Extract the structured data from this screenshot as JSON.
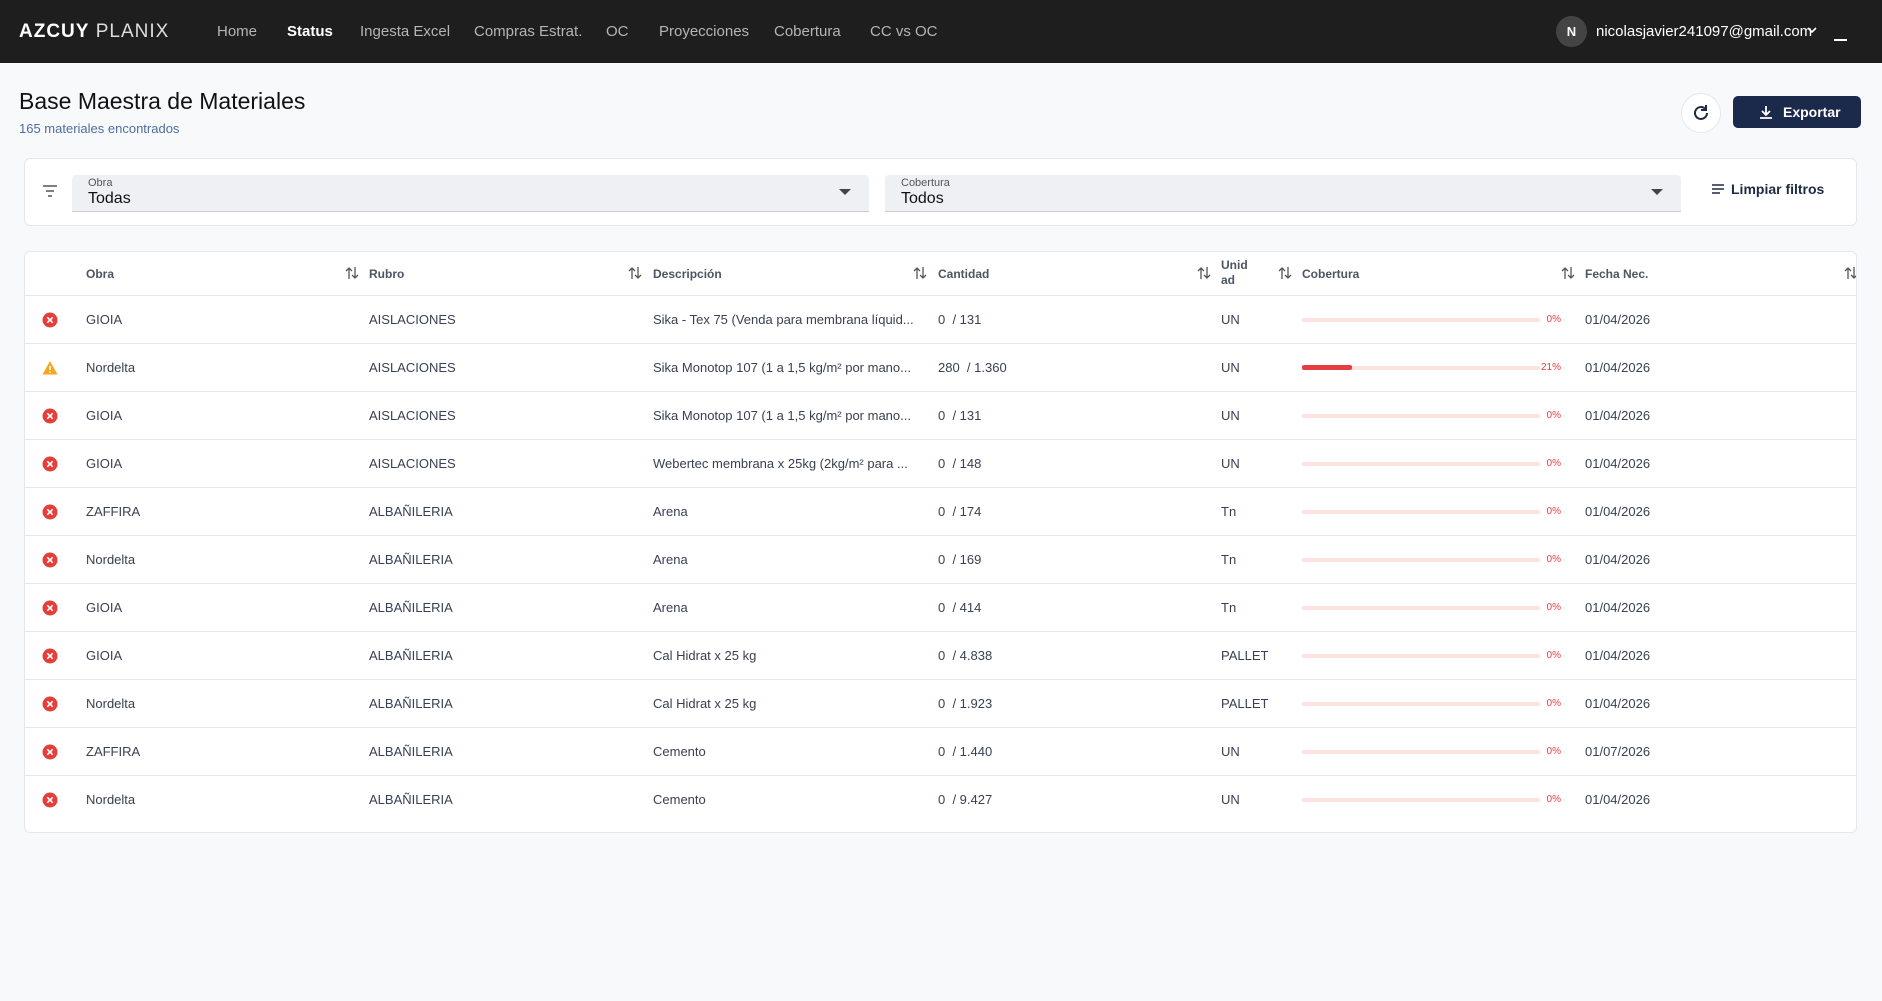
{
  "navbar": {
    "brand_bold": "AZCUY",
    "brand_light": "PLANIX",
    "items": [
      "Home",
      "Status",
      "Ingesta Excel",
      "Compras Estrat.",
      "OC",
      "Proyecciones",
      "Cobertura",
      "CC vs OC"
    ],
    "active": 1,
    "avatar": "N",
    "user": "nicolasjavier241097@gmail.com"
  },
  "header": {
    "title": "Base Maestra de Materiales",
    "subtitle": "165 materiales encontrados",
    "export": "Exportar"
  },
  "filters": {
    "obra_label": "Obra",
    "obra_value": "Todas",
    "cobertura_label": "Cobertura",
    "cobertura_value": "Todos",
    "clear": "Limpiar filtros"
  },
  "table": {
    "columns": [
      "Obra",
      "Rubro",
      "Descripción",
      "Cantidad",
      "Unidad",
      "Cobertura",
      "Fecha Nec."
    ],
    "rows": [
      {
        "status": "error",
        "obra": "GIOIA",
        "rubro": "AISLACIONES",
        "descripcion": "Sika - Tex 75 (Venda para membrana líquid...",
        "cantidad": "0  / 131",
        "unidad": "UN",
        "cobertura": 0,
        "cobertura_label": "0%",
        "fecha": "01/04/2026"
      },
      {
        "status": "warning",
        "obra": "Nordelta",
        "rubro": "AISLACIONES",
        "descripcion": "Sika Monotop 107 (1 a 1,5 kg/m² por mano...",
        "cantidad": "280  / 1.360",
        "unidad": "UN",
        "cobertura": 21,
        "cobertura_label": "21%",
        "fecha": "01/04/2026"
      },
      {
        "status": "error",
        "obra": "GIOIA",
        "rubro": "AISLACIONES",
        "descripcion": "Sika Monotop 107 (1 a 1,5 kg/m² por mano...",
        "cantidad": "0  / 131",
        "unidad": "UN",
        "cobertura": 0,
        "cobertura_label": "0%",
        "fecha": "01/04/2026"
      },
      {
        "status": "error",
        "obra": "GIOIA",
        "rubro": "AISLACIONES",
        "descripcion": "Webertec membrana x 25kg (2kg/m² para ...",
        "cantidad": "0  / 148",
        "unidad": "UN",
        "cobertura": 0,
        "cobertura_label": "0%",
        "fecha": "01/04/2026"
      },
      {
        "status": "error",
        "obra": "ZAFFIRA",
        "rubro": "ALBAÑILERIA",
        "descripcion": "Arena",
        "cantidad": "0  / 174",
        "unidad": "Tn",
        "cobertura": 0,
        "cobertura_label": "0%",
        "fecha": "01/04/2026"
      },
      {
        "status": "error",
        "obra": "Nordelta",
        "rubro": "ALBAÑILERIA",
        "descripcion": "Arena",
        "cantidad": "0  / 169",
        "unidad": "Tn",
        "cobertura": 0,
        "cobertura_label": "0%",
        "fecha": "01/04/2026"
      },
      {
        "status": "error",
        "obra": "GIOIA",
        "rubro": "ALBAÑILERIA",
        "descripcion": "Arena",
        "cantidad": "0  / 414",
        "unidad": "Tn",
        "cobertura": 0,
        "cobertura_label": "0%",
        "fecha": "01/04/2026"
      },
      {
        "status": "error",
        "obra": "GIOIA",
        "rubro": "ALBAÑILERIA",
        "descripcion": "Cal Hidrat x 25 kg",
        "cantidad": "0  / 4.838",
        "unidad": "PALLET",
        "cobertura": 0,
        "cobertura_label": "0%",
        "fecha": "01/04/2026"
      },
      {
        "status": "error",
        "obra": "Nordelta",
        "rubro": "ALBAÑILERIA",
        "descripcion": "Cal Hidrat x 25 kg",
        "cantidad": "0  / 1.923",
        "unidad": "PALLET",
        "cobertura": 0,
        "cobertura_label": "0%",
        "fecha": "01/04/2026"
      },
      {
        "status": "error",
        "obra": "ZAFFIRA",
        "rubro": "ALBAÑILERIA",
        "descripcion": "Cemento",
        "cantidad": "0  / 1.440",
        "unidad": "UN",
        "cobertura": 0,
        "cobertura_label": "0%",
        "fecha": "01/07/2026"
      },
      {
        "status": "error",
        "obra": "Nordelta",
        "rubro": "ALBAÑILERIA",
        "descripcion": "Cemento",
        "cantidad": "0  / 9.427",
        "unidad": "UN",
        "cobertura": 0,
        "cobertura_label": "0%",
        "fecha": "01/04/2026"
      }
    ]
  }
}
